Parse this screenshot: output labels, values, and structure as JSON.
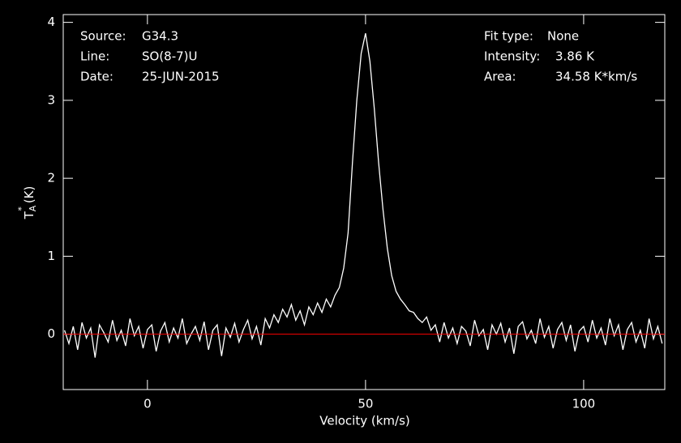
{
  "chart_data": {
    "type": "line",
    "xlabel": "Velocity (km/s)",
    "ylabel": {
      "main": "T",
      "sub": "A",
      "sup": "*",
      "unit": "(K)"
    },
    "annotations": [
      {
        "label": "Source:",
        "value": "G34.3"
      },
      {
        "label": "Line:",
        "value": "SO(8-7)U"
      },
      {
        "label": "Date:",
        "value": "25-JUN-2015"
      },
      {
        "label": "Fit type:",
        "value": "None"
      },
      {
        "label": "Intensity:",
        "value": "3.86 K"
      },
      {
        "label": "Area:",
        "value": "34.58 K*km/s"
      }
    ],
    "xlim": [
      -19.3,
      118.6
    ],
    "ylim": [
      -0.71,
      4.1
    ],
    "xticks": [
      0,
      50,
      100
    ],
    "yticks": [
      0,
      1,
      2,
      3,
      4
    ],
    "color": "#ffffff",
    "baseline": 0,
    "baseline_color": "#ff0000",
    "x": [
      -19,
      -18,
      -17,
      -16,
      -15,
      -14,
      -13,
      -12,
      -11,
      -10,
      -9,
      -8,
      -7,
      -6,
      -5,
      -4,
      -3,
      -2,
      -1,
      0,
      1,
      2,
      3,
      4,
      5,
      6,
      7,
      8,
      9,
      10,
      11,
      12,
      13,
      14,
      15,
      16,
      17,
      18,
      19,
      20,
      21,
      22,
      23,
      24,
      25,
      26,
      27,
      28,
      29,
      30,
      31,
      32,
      33,
      34,
      35,
      36,
      37,
      38,
      39,
      40,
      41,
      42,
      43,
      44,
      45,
      46,
      47,
      48,
      49,
      50,
      51,
      52,
      53,
      54,
      55,
      56,
      57,
      58,
      59,
      60,
      61,
      62,
      63,
      64,
      65,
      66,
      67,
      68,
      69,
      70,
      71,
      72,
      73,
      74,
      75,
      76,
      77,
      78,
      79,
      80,
      81,
      82,
      83,
      84,
      85,
      86,
      87,
      88,
      89,
      90,
      91,
      92,
      93,
      94,
      95,
      96,
      97,
      98,
      99,
      100,
      101,
      102,
      103,
      104,
      105,
      106,
      107,
      108,
      109,
      110,
      111,
      112,
      113,
      114,
      115,
      116,
      117,
      118
    ],
    "values": [
      0.05,
      -0.12,
      0.1,
      -0.2,
      0.15,
      -0.05,
      0.08,
      -0.3,
      0.12,
      0.02,
      -0.1,
      0.18,
      -0.08,
      0.05,
      -0.15,
      0.2,
      -0.02,
      0.1,
      -0.18,
      0.06,
      0.12,
      -0.22,
      0.04,
      0.15,
      -0.1,
      0.08,
      -0.05,
      0.2,
      -0.12,
      0.0,
      0.1,
      -0.08,
      0.16,
      -0.2,
      0.05,
      0.12,
      -0.28,
      0.08,
      -0.04,
      0.14,
      -0.1,
      0.06,
      0.18,
      -0.06,
      0.1,
      -0.14,
      0.2,
      0.08,
      0.25,
      0.15,
      0.32,
      0.22,
      0.38,
      0.18,
      0.3,
      0.12,
      0.35,
      0.25,
      0.4,
      0.28,
      0.45,
      0.35,
      0.5,
      0.6,
      0.85,
      1.3,
      2.2,
      3.0,
      3.6,
      3.86,
      3.5,
      2.9,
      2.2,
      1.6,
      1.1,
      0.75,
      0.55,
      0.45,
      0.38,
      0.3,
      0.28,
      0.2,
      0.15,
      0.22,
      0.05,
      0.12,
      -0.1,
      0.15,
      -0.05,
      0.08,
      -0.12,
      0.1,
      0.04,
      -0.15,
      0.18,
      -0.02,
      0.06,
      -0.2,
      0.12,
      0.0,
      0.14,
      -0.1,
      0.08,
      -0.25,
      0.1,
      0.16,
      -0.06,
      0.05,
      -0.12,
      0.2,
      -0.04,
      0.1,
      -0.18,
      0.06,
      0.15,
      -0.08,
      0.12,
      -0.22,
      0.04,
      0.1,
      -0.1,
      0.18,
      -0.05,
      0.08,
      -0.14,
      0.2,
      -0.02,
      0.12,
      -0.2,
      0.06,
      0.15,
      -0.1,
      0.05,
      -0.18,
      0.2,
      -0.06,
      0.1,
      -0.12
    ]
  }
}
